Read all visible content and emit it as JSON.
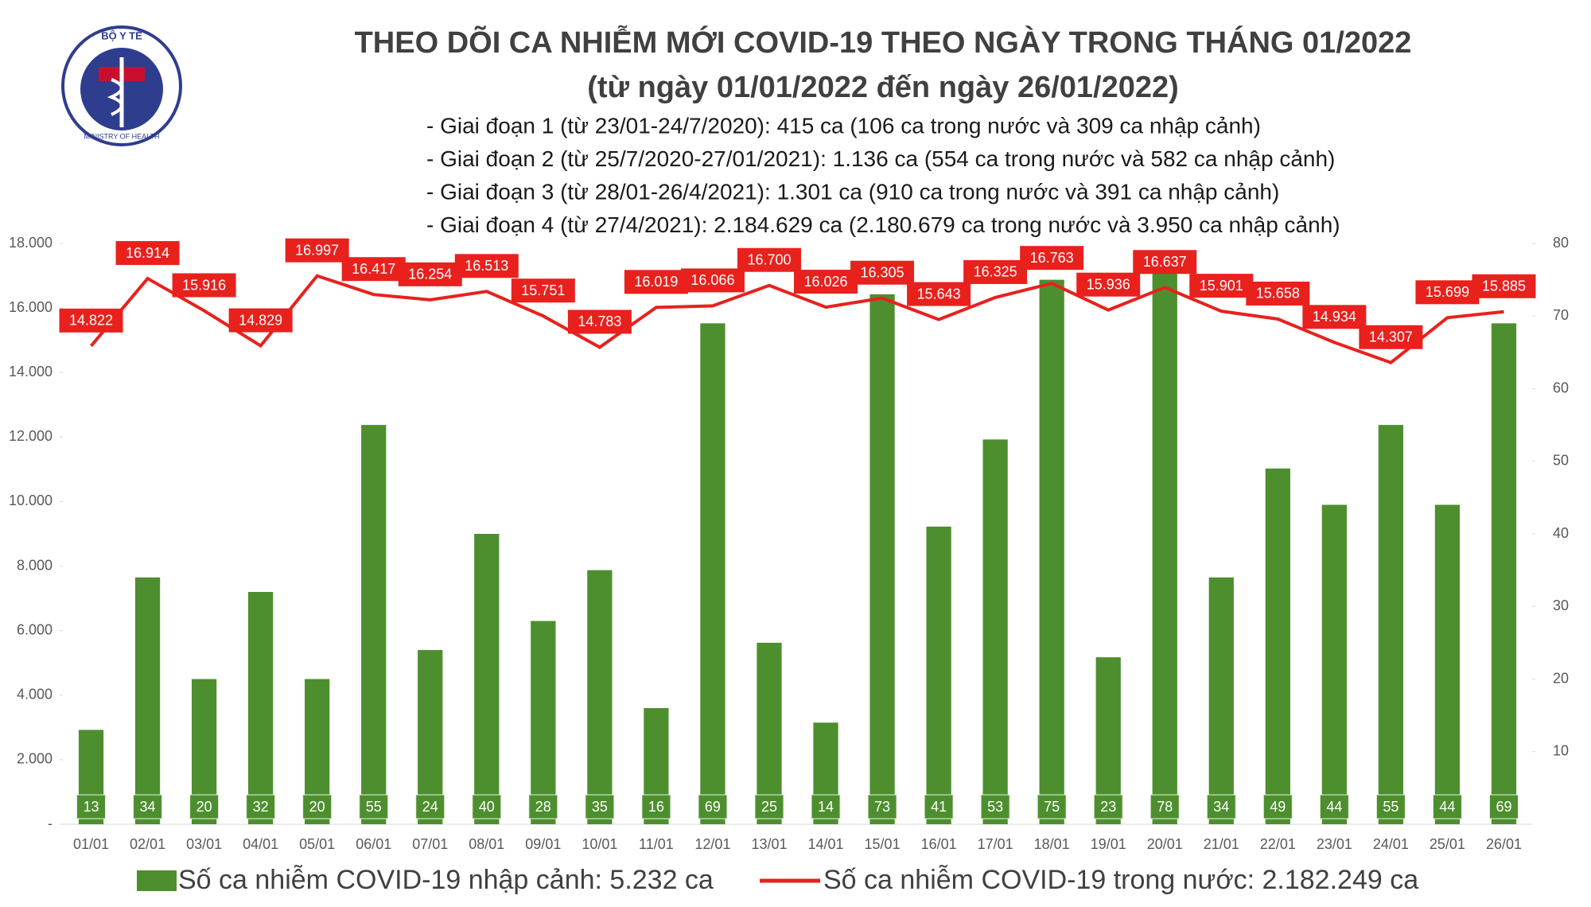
{
  "logo": {
    "top": "BỘ Y TẾ",
    "bottom": "MINISTRY OF HEALTH"
  },
  "chart_data": {
    "type": "bar-line",
    "title": "THEO DÕI CA NHIỄM MỚI COVID-19 THEO NGÀY TRONG THÁNG 01/2022",
    "subtitle": "(từ ngày 01/01/2022 đến ngày 26/01/2022)",
    "notes": [
      "- Giai đoạn 1 (từ 23/01-24/7/2020): 415 ca (106 ca trong nước và 309 ca nhập cảnh)",
      "- Giai đoạn 2 (từ 25/7/2020-27/01/2021): 1.136 ca (554 ca trong nước và 582 ca nhập cảnh)",
      "- Giai đoạn 3 (từ 28/01-26/4/2021): 1.301 ca (910 ca trong nước và 391 ca nhập cảnh)",
      "- Giai đoạn 4 (từ 27/4/2021): 2.184.629 ca (2.180.679 ca trong nước và 3.950 ca nhập cảnh)"
    ],
    "categories": [
      "01/01",
      "02/01",
      "03/01",
      "04/01",
      "05/01",
      "06/01",
      "07/01",
      "08/01",
      "09/01",
      "10/01",
      "11/01",
      "12/01",
      "13/01",
      "14/01",
      "15/01",
      "16/01",
      "17/01",
      "18/01",
      "19/01",
      "20/01",
      "21/01",
      "22/01",
      "23/01",
      "24/01",
      "25/01",
      "26/01"
    ],
    "series": [
      {
        "name": "Số ca nhiễm COVID-19 nhập cảnh: 5.232 ca",
        "type": "bar",
        "axis": "y2",
        "color": "#4d8f2e",
        "values": [
          13,
          34,
          20,
          32,
          20,
          55,
          24,
          40,
          28,
          35,
          16,
          69,
          25,
          14,
          73,
          41,
          53,
          75,
          23,
          78,
          34,
          49,
          44,
          55,
          44,
          69
        ]
      },
      {
        "name": "Số ca nhiễm COVID-19 trong nước: 2.182.249 ca",
        "type": "line",
        "color": "#e8211d",
        "values": [
          14822,
          16914,
          15916,
          14829,
          16997,
          16417,
          16254,
          16513,
          15751,
          14783,
          16019,
          16066,
          16700,
          16026,
          16305,
          15643,
          16325,
          16763,
          15936,
          16637,
          15901,
          15658,
          14934,
          14307,
          15699,
          15885
        ],
        "value_labels": [
          "14.822",
          "16.914",
          "15.916",
          "14.829",
          "16.997",
          "16.417",
          "16.254",
          "16.513",
          "15.751",
          "14.783",
          "16.019",
          "16.066",
          "16.700",
          "16.026",
          "16.305",
          "15.643",
          "16.325",
          "16.763",
          "15.936",
          "16.637",
          "15.901",
          "15.658",
          "14.934",
          "14.307",
          "15.699",
          "15.885"
        ]
      }
    ],
    "ylim": [
      0,
      18000
    ],
    "yticks": [
      {
        "value": 0,
        "label": "-"
      },
      {
        "value": 2000,
        "label": "2.000"
      },
      {
        "value": 4000,
        "label": "4.000"
      },
      {
        "value": 6000,
        "label": "6.000"
      },
      {
        "value": 8000,
        "label": "8.000"
      },
      {
        "value": 10000,
        "label": "10.000"
      },
      {
        "value": 12000,
        "label": "12.000"
      },
      {
        "value": 14000,
        "label": "14.000"
      },
      {
        "value": 16000,
        "label": "16.000"
      },
      {
        "value": 18000,
        "label": "18.000"
      }
    ],
    "y2lim": [
      0,
      80
    ],
    "y2ticks": [
      10,
      20,
      30,
      40,
      50,
      60,
      70,
      80
    ],
    "grid": false
  }
}
